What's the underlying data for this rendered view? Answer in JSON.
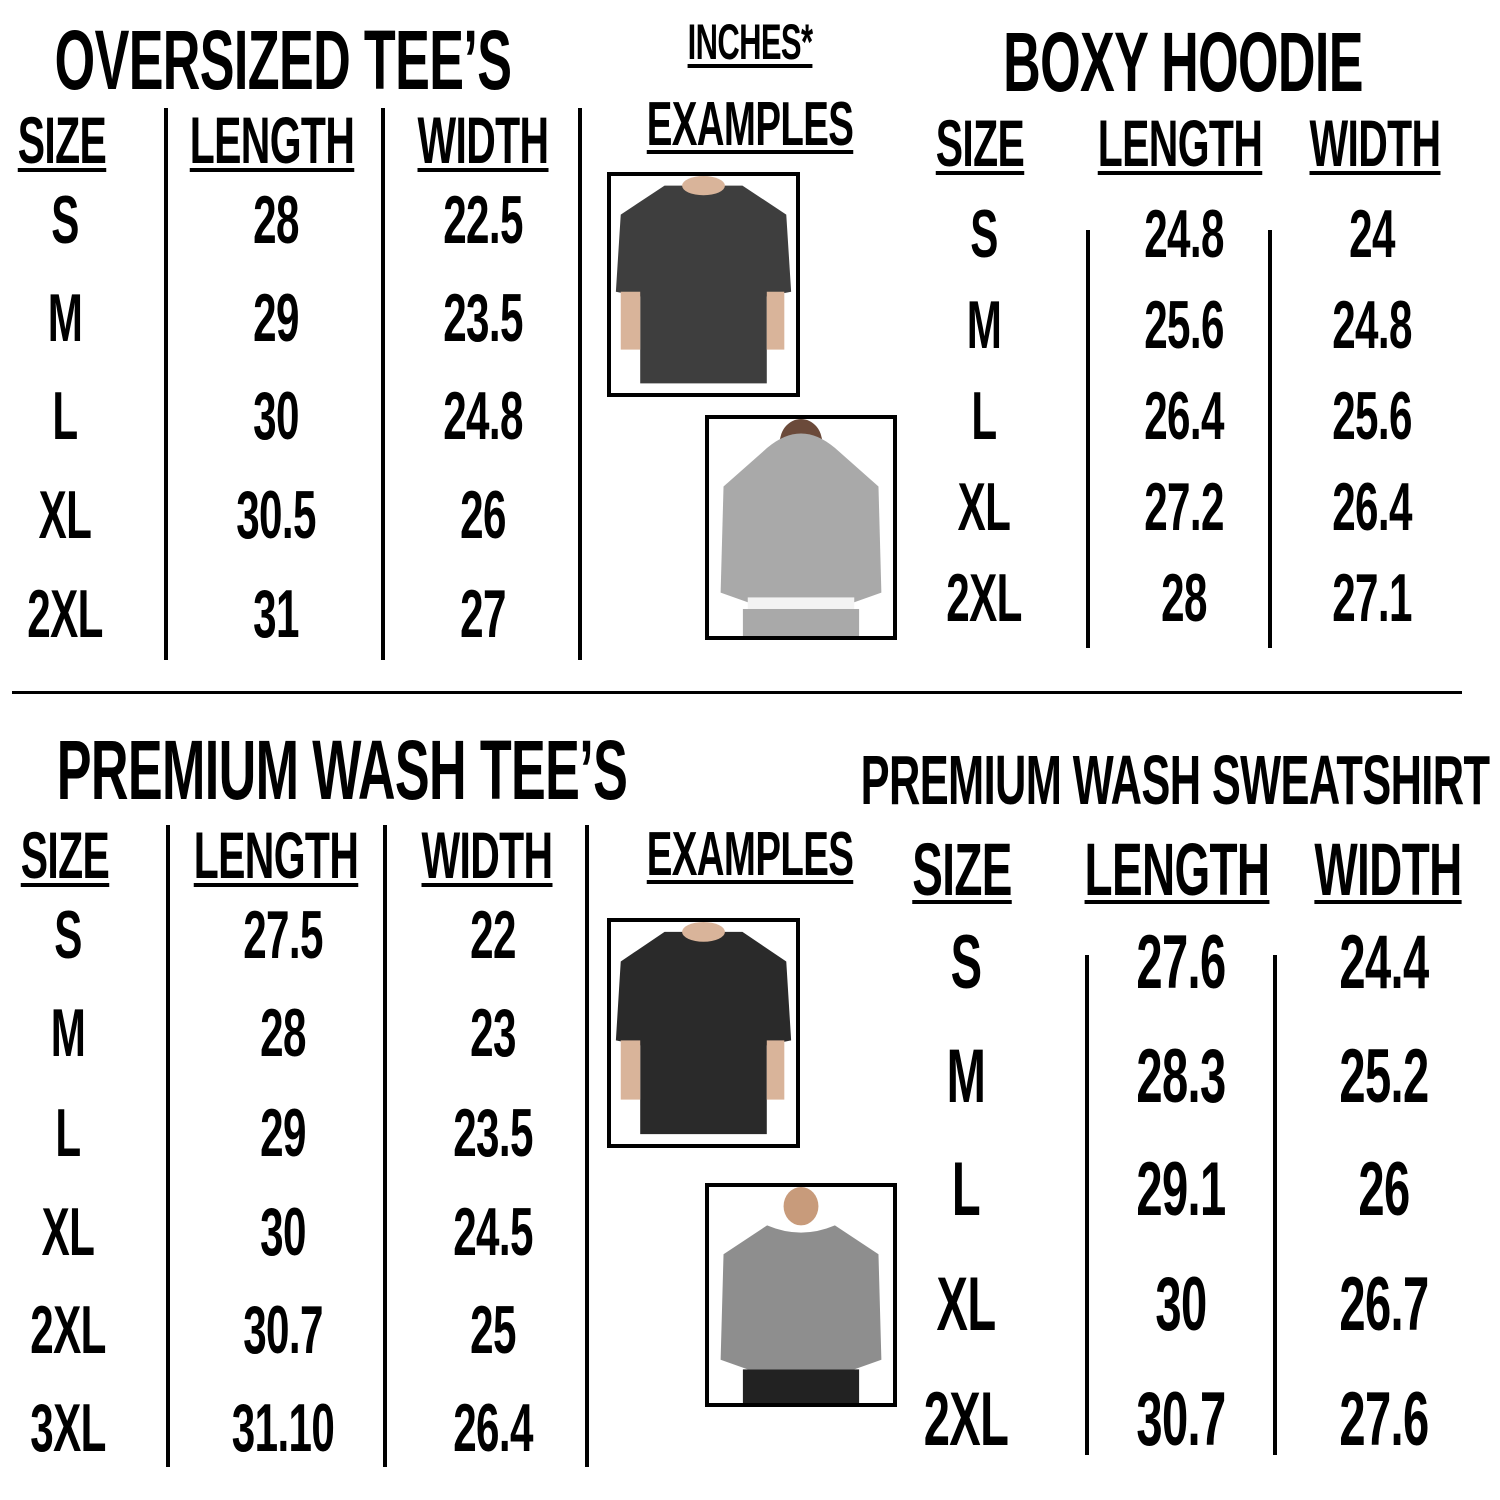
{
  "unit_note": "INCHES*",
  "examples_label": "EXAMPLES",
  "headers": {
    "size": "SIZE",
    "length": "LENGTH",
    "width": "WIDTH"
  },
  "oversized_tees": {
    "title": "OVERSIZED TEE’S",
    "rows": [
      {
        "size": "S",
        "length": "28",
        "width": "22.5"
      },
      {
        "size": "M",
        "length": "29",
        "width": "23.5"
      },
      {
        "size": "L",
        "length": "30",
        "width": "24.8"
      },
      {
        "size": "XL",
        "length": "30.5",
        "width": "26"
      },
      {
        "size": "2XL",
        "length": "31",
        "width": "27"
      }
    ]
  },
  "boxy_hoodie": {
    "title": "BOXY HOODIE",
    "rows": [
      {
        "size": "S",
        "length": "24.8",
        "width": "24"
      },
      {
        "size": "M",
        "length": "25.6",
        "width": "24.8"
      },
      {
        "size": "L",
        "length": "26.4",
        "width": "25.6"
      },
      {
        "size": "XL",
        "length": "27.2",
        "width": "26.4"
      },
      {
        "size": "2XL",
        "length": "28",
        "width": "27.1"
      }
    ]
  },
  "premium_wash_tees": {
    "title": "PREMIUM WASH TEE’S",
    "rows": [
      {
        "size": "S",
        "length": "27.5",
        "width": "22"
      },
      {
        "size": "M",
        "length": "28",
        "width": "23"
      },
      {
        "size": "L",
        "length": "29",
        "width": "23.5"
      },
      {
        "size": "XL",
        "length": "30",
        "width": "24.5"
      },
      {
        "size": "2XL",
        "length": "30.7",
        "width": "25"
      },
      {
        "size": "3XL",
        "length": "31.10",
        "width": "26.4"
      }
    ]
  },
  "premium_wash_sweatshirt": {
    "title": "PREMIUM WASH SWEATSHIRT",
    "rows": [
      {
        "size": "S",
        "length": "27.6",
        "width": "24.4"
      },
      {
        "size": "M",
        "length": "28.3",
        "width": "25.2"
      },
      {
        "size": "L",
        "length": "29.1",
        "width": "26"
      },
      {
        "size": "XL",
        "length": "30",
        "width": "26.7"
      },
      {
        "size": "2XL",
        "length": "30.7",
        "width": "27.6"
      }
    ]
  },
  "example_images": [
    {
      "name": "oversized-tee-photo",
      "color": "#3e3e3e"
    },
    {
      "name": "boxy-hoodie-photo",
      "color": "#a9a9a9"
    },
    {
      "name": "premium-wash-tee-photo",
      "color": "#2a2a2a"
    },
    {
      "name": "premium-wash-sweatshirt-photo",
      "color": "#8e8e8e"
    }
  ]
}
